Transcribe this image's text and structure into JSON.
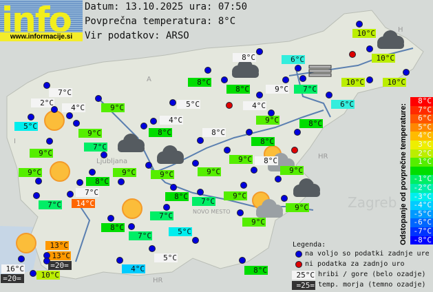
{
  "logo": {
    "word": "info",
    "url": "www.informacije.si"
  },
  "header": {
    "date_line": "Datum: 13.10.2025 ura: 07:50",
    "avg_line": "Povprečna temperatura: 8°C",
    "source_line": "Vir podatkov: ARSO"
  },
  "map_labels": [
    "A",
    "I",
    "H",
    "HR",
    "HR",
    "Zagreb",
    "Ljubljana",
    "NOVO MESTO"
  ],
  "stations": [
    {
      "t": "10°C",
      "c": "#bbee00"
    },
    {
      "t": "8°C",
      "c": "#f4f4f4"
    },
    {
      "t": "6°C",
      "c": "#33eedd"
    },
    {
      "t": "10°C",
      "c": "#bbee00"
    },
    {
      "t": "7°C",
      "c": "#f4f4f4"
    },
    {
      "t": "8°C",
      "c": "#00dd00"
    },
    {
      "t": "8°C",
      "c": "#00dd00"
    },
    {
      "t": "9°C",
      "c": "#f4f4f4"
    },
    {
      "t": "7°C",
      "c": "#00ee66"
    },
    {
      "t": "10°C",
      "c": "#bbee00"
    },
    {
      "t": "10°C",
      "c": "#bbee00"
    },
    {
      "t": "2°C",
      "c": "#f4f4f4"
    },
    {
      "t": "4°C",
      "c": "#f4f4f4"
    },
    {
      "t": "9°C",
      "c": "#55ee00"
    },
    {
      "t": "5°C",
      "c": "#f4f4f4"
    },
    {
      "t": "4°C",
      "c": "#f4f4f4"
    },
    {
      "t": "6°C",
      "c": "#33eedd"
    },
    {
      "t": "5°C",
      "c": "#00eeee"
    },
    {
      "t": "4°C",
      "c": "#f4f4f4"
    },
    {
      "t": "9°C",
      "c": "#55ee00"
    },
    {
      "t": "8°C",
      "c": "#00dd00"
    },
    {
      "t": "9°C",
      "c": "#55ee00"
    },
    {
      "t": "8°C",
      "c": "#00dd00"
    },
    {
      "t": "8°C",
      "c": "#f4f4f4"
    },
    {
      "t": "8°C",
      "c": "#00dd00"
    },
    {
      "t": "7°C",
      "c": "#00ee66"
    },
    {
      "t": "9°C",
      "c": "#55ee00"
    },
    {
      "t": "9°C",
      "c": "#55ee00"
    },
    {
      "t": "8°C",
      "c": "#f4f4f4"
    },
    {
      "t": "9°C",
      "c": "#55ee00"
    },
    {
      "t": "9°C",
      "c": "#55ee00"
    },
    {
      "t": "9°C",
      "c": "#55ee00"
    },
    {
      "t": "9°C",
      "c": "#55ee00"
    },
    {
      "t": "9°C",
      "c": "#55ee00"
    },
    {
      "t": "8°C",
      "c": "#00dd00"
    },
    {
      "t": "7°C",
      "c": "#f4f4f4"
    },
    {
      "t": "14°C",
      "c": "#ff6600"
    },
    {
      "t": "8°C",
      "c": "#00dd00"
    },
    {
      "t": "7°C",
      "c": "#00ee66"
    },
    {
      "t": "9°C",
      "c": "#55ee00"
    },
    {
      "t": "7°C",
      "c": "#00ee66"
    },
    {
      "t": "9°C",
      "c": "#55ee00"
    },
    {
      "t": "7°C",
      "c": "#00ee66"
    },
    {
      "t": "9°C",
      "c": "#55ee00"
    },
    {
      "t": "8°C",
      "c": "#00dd00"
    },
    {
      "t": "7°C",
      "c": "#00ee66"
    },
    {
      "t": "5°C",
      "c": "#00eeee"
    },
    {
      "t": "13°C",
      "c": "#ff9900"
    },
    {
      "t": "13°C",
      "c": "#ff9900"
    },
    {
      "t": "=20=",
      "c": "#333333"
    },
    {
      "t": "5°C",
      "c": "#f4f4f4"
    },
    {
      "t": "16°C",
      "c": "#f4f4f4"
    },
    {
      "t": "4°C",
      "c": "#00ccff"
    },
    {
      "t": "8°C",
      "c": "#00dd00"
    },
    {
      "t": "10°C",
      "c": "#bbee00"
    },
    {
      "t": "=20=",
      "c": "#333333"
    }
  ],
  "weather_icons": [
    "cloud-icon",
    "cloud-icon",
    "cloud-icon",
    "cloud-icon",
    "cloud-icon",
    "sun-icon",
    "sun-icon",
    "sun-icon",
    "sun-icon",
    "sun-cloud-icon",
    "sun-cloud-icon",
    "fog-icon"
  ],
  "legend": {
    "title": "Legenda:",
    "blue_dot": "na voljo so podatki zadnje ure",
    "red_dot": "ni podatka za zadnjo uro",
    "mountain_sample": "25°C",
    "mountain_text": "hribi / gore (belo ozadje)",
    "sea_sample": "=25=",
    "sea_text": "temp. morja (temno ozadje)"
  },
  "scale": {
    "title": "Odstopanje od povprečne temperature:",
    "rows": [
      {
        "t": "8°C",
        "c": "#ff0000"
      },
      {
        "t": "7°C",
        "c": "#ff2a00"
      },
      {
        "t": "6°C",
        "c": "#ff5500"
      },
      {
        "t": "5°C",
        "c": "#ff8800"
      },
      {
        "t": "4°C",
        "c": "#ffbb00"
      },
      {
        "t": "3°C",
        "c": "#eeee00"
      },
      {
        "t": "2°C",
        "c": "#bbee00"
      },
      {
        "t": "1°C",
        "c": "#55ee00"
      },
      {
        "t": "",
        "c": "#00dd00"
      },
      {
        "t": "-1°C",
        "c": "#00ee66"
      },
      {
        "t": "-2°C",
        "c": "#00eeaa"
      },
      {
        "t": "-3°C",
        "c": "#00eeee"
      },
      {
        "t": "-4°C",
        "c": "#00ccff"
      },
      {
        "t": "-5°C",
        "c": "#0099ff"
      },
      {
        "t": "-6°C",
        "c": "#0066ff"
      },
      {
        "t": "-7°C",
        "c": "#0033ff"
      },
      {
        "t": "-8°C",
        "c": "#0000ff"
      }
    ]
  }
}
